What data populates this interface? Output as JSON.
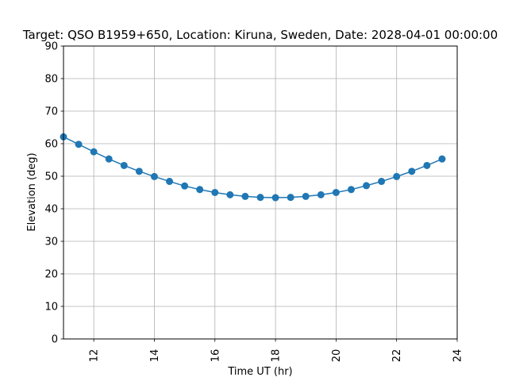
{
  "chart_data": {
    "type": "line",
    "title": "Target: QSO B1959+650,  Location: Kiruna, Sweden, Date: 2028-04-01 00:00:00",
    "xlabel": "Time UT (hr)",
    "ylabel": "Elevation (deg)",
    "xlim": [
      11,
      24
    ],
    "ylim": [
      0,
      90
    ],
    "xticks": [
      12,
      14,
      16,
      18,
      20,
      22,
      24
    ],
    "yticks": [
      0,
      10,
      20,
      30,
      40,
      50,
      60,
      70,
      80,
      90
    ],
    "grid": true,
    "legend": "none",
    "color": "#1f77b4",
    "marker": "circle",
    "series": [
      {
        "x": [
          11.0,
          11.5,
          12.0,
          12.5,
          13.0,
          13.5,
          14.0,
          14.5,
          15.0,
          15.5,
          16.0,
          16.5,
          17.0,
          17.5,
          18.0,
          18.5,
          19.0,
          19.5,
          20.0,
          20.5,
          21.0,
          21.5,
          22.0,
          22.5,
          23.0,
          23.5
        ],
        "y": [
          62.1,
          59.8,
          57.5,
          55.3,
          53.3,
          51.5,
          49.9,
          48.4,
          47.0,
          45.9,
          45.0,
          44.3,
          43.8,
          43.5,
          43.4,
          43.5,
          43.8,
          44.3,
          45.0,
          45.9,
          47.1,
          48.4,
          49.9,
          51.5,
          53.3,
          55.3
        ]
      }
    ]
  }
}
